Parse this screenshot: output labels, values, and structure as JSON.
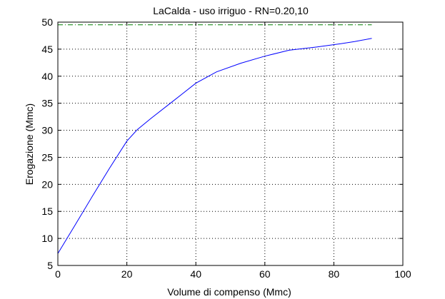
{
  "chart_data": {
    "type": "line",
    "title": "LaCalda  -  uso irriguo  -   RN=0.20,10",
    "xlabel": "Volume di compenso (Mmc)",
    "ylabel": "Erogazione (Mmc)",
    "xlim": [
      0,
      100
    ],
    "ylim": [
      5,
      50
    ],
    "xticks": [
      0,
      20,
      40,
      60,
      80,
      100
    ],
    "yticks": [
      5,
      10,
      15,
      20,
      25,
      30,
      35,
      40,
      45,
      50
    ],
    "grid": true,
    "legend": "none",
    "series": [
      {
        "color": "#0000ff",
        "style": "solid",
        "x": [
          0,
          5,
          10,
          15,
          20,
          23,
          27,
          33,
          40,
          46,
          53,
          60,
          67,
          75,
          82,
          86,
          91
        ],
        "y": [
          7.2,
          12.5,
          17.8,
          23.0,
          28.0,
          30.1,
          32.2,
          35.2,
          38.7,
          40.8,
          42.4,
          43.7,
          44.8,
          45.4,
          46.0,
          46.4,
          47.0
        ]
      },
      {
        "color": "#008000",
        "style": "dash-dot",
        "x": [
          0,
          91
        ],
        "y": [
          49.5,
          49.5
        ]
      }
    ]
  }
}
